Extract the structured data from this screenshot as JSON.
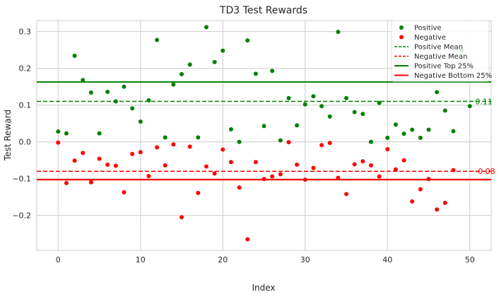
{
  "chart_data": {
    "type": "scatter",
    "title": "TD3 Test Rewards",
    "xlabel": "Index",
    "ylabel": "Test Reward",
    "xlim": [
      -2.6,
      52.6
    ],
    "ylim": [
      -0.295,
      0.33
    ],
    "xticks": [
      0,
      10,
      20,
      30,
      40,
      50
    ],
    "yticks": [
      -0.2,
      -0.1,
      0.0,
      0.1,
      0.2,
      0.3
    ],
    "xtick_labels": [
      "0",
      "10",
      "20",
      "30",
      "40",
      "50"
    ],
    "ytick_labels": [
      "−0.2",
      "−0.1",
      "0.0",
      "0.1",
      "0.2",
      "0.3"
    ],
    "grid": true,
    "legend_position": "top-right",
    "series": [
      {
        "name": "Positive",
        "color": "#008000",
        "marker": "circle",
        "x": [
          0,
          1,
          2,
          3,
          4,
          5,
          6,
          7,
          8,
          9,
          10,
          11,
          12,
          13,
          14,
          15,
          16,
          17,
          18,
          19,
          20,
          21,
          22,
          23,
          24,
          25,
          26,
          27,
          28,
          29,
          30,
          31,
          32,
          33,
          34,
          35,
          36,
          37,
          38,
          39,
          40,
          41,
          42,
          43,
          44,
          45,
          46,
          47,
          48,
          49,
          50
        ],
        "y": [
          0.028,
          0.023,
          0.234,
          0.168,
          0.134,
          0.023,
          0.136,
          0.11,
          0.15,
          0.091,
          0.055,
          0.113,
          0.277,
          0.012,
          0.156,
          0.184,
          0.21,
          0.012,
          0.312,
          0.217,
          0.248,
          0.034,
          0.0,
          0.276,
          0.185,
          0.043,
          0.193,
          0.004,
          0.119,
          0.045,
          0.102,
          0.124,
          0.097,
          0.069,
          0.299,
          0.119,
          0.081,
          0.076,
          0.0,
          0.106,
          0.011,
          0.047,
          0.022,
          0.033,
          0.011,
          0.033,
          0.135,
          0.085,
          0.029,
          0.248,
          0.097
        ]
      },
      {
        "name": "Negative",
        "color": "#ff0000",
        "marker": "circle",
        "x": [
          0,
          1,
          2,
          3,
          4,
          5,
          6,
          7,
          8,
          9,
          10,
          11,
          12,
          13,
          14,
          15,
          16,
          17,
          18,
          19,
          20,
          21,
          22,
          23,
          24,
          25,
          26,
          27,
          28,
          29,
          30,
          31,
          32,
          33,
          34,
          35,
          36,
          37,
          38,
          39,
          40,
          41,
          42,
          43,
          44,
          45,
          46,
          47,
          48
        ],
        "y": [
          -0.002,
          -0.112,
          -0.051,
          -0.03,
          -0.11,
          -0.046,
          -0.062,
          -0.065,
          -0.137,
          -0.033,
          -0.028,
          -0.093,
          -0.015,
          -0.064,
          -0.007,
          -0.205,
          -0.013,
          -0.139,
          -0.067,
          -0.086,
          -0.021,
          -0.055,
          -0.124,
          -0.265,
          -0.055,
          -0.101,
          -0.094,
          -0.088,
          -0.001,
          -0.062,
          -0.103,
          -0.071,
          -0.009,
          -0.003,
          -0.098,
          -0.142,
          -0.061,
          -0.053,
          -0.064,
          -0.094,
          -0.02,
          -0.075,
          -0.05,
          -0.162,
          -0.129,
          -0.101,
          -0.184,
          -0.166,
          -0.077
        ]
      }
    ],
    "reference_lines": [
      {
        "name": "Positive Mean",
        "value": 0.11,
        "color": "#008000",
        "style": "dashed",
        "label": "0.11"
      },
      {
        "name": "Negative Mean",
        "value": -0.08,
        "color": "#ff0000",
        "style": "dashed",
        "label": "-0.08"
      },
      {
        "name": "Positive Top 25%",
        "value": 0.163,
        "color": "#008000",
        "style": "solid"
      },
      {
        "name": "Negative Bottom 25%",
        "value": -0.103,
        "color": "#ff0000",
        "style": "solid"
      }
    ]
  }
}
